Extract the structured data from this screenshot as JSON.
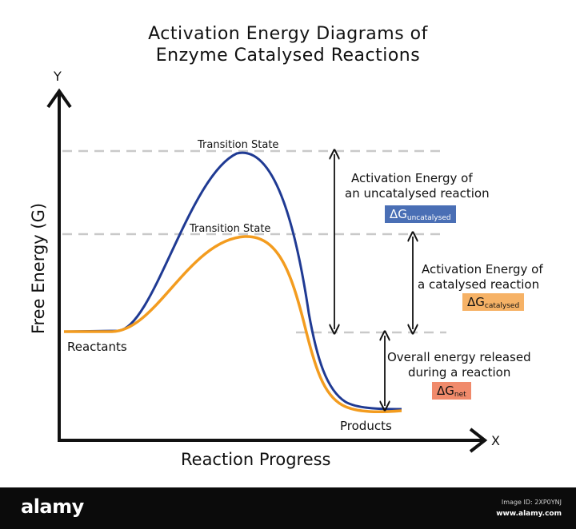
{
  "title_line1": "Activation Energy Diagrams of",
  "title_line2": "Enzyme Catalysed Reactions",
  "axes": {
    "y_label": "Free Energy (G)",
    "x_label": "Reaction Progress",
    "y_letter": "Y",
    "x_letter": "X"
  },
  "curves": [
    {
      "name": "uncatalysed",
      "color": "#1f3a93"
    },
    {
      "name": "catalysed",
      "color": "#f39c1f"
    }
  ],
  "labels": {
    "transition_uncatalysed": "Transition State",
    "transition_catalysed": "Transition State",
    "reactants": "Reactants",
    "products": "Products"
  },
  "annotations": {
    "uncatalysed_line1": "Activation Energy of",
    "uncatalysed_line2": "an uncatalysed reaction",
    "uncatalysed_symbol": "ΔG",
    "uncatalysed_sub": "uncatalysed",
    "uncatalysed_color": "#4a6fb5",
    "catalysed_line1": "Activation Energy of",
    "catalysed_line2": "a catalysed reaction",
    "catalysed_symbol": "ΔG",
    "catalysed_sub": "catalysed",
    "catalysed_color": "#f6b266",
    "net_line1": "Overall energy released",
    "net_line2": "during a reaction",
    "net_symbol": "ΔG",
    "net_sub": "net",
    "net_color": "#f08a6b"
  },
  "footer": {
    "logo": "alamy",
    "image_id": "Image ID: 2XP0YNJ",
    "site": "www.alamy.com"
  }
}
